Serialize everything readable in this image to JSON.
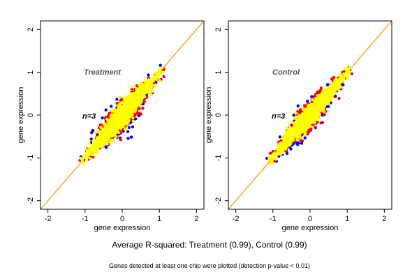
{
  "chart_data": [
    {
      "type": "scatter",
      "title": "Treatment",
      "annotation": "n=3",
      "xlabel": "gene expression",
      "ylabel": "gene expression",
      "xlim": [
        -2.2,
        2.2
      ],
      "ylim": [
        -2.2,
        2.2
      ],
      "xticks": [
        -2,
        -1,
        0,
        1,
        2
      ],
      "yticks": [
        -2,
        -1,
        0,
        1,
        2
      ],
      "grid": false,
      "reference_line": {
        "slope": 1,
        "intercept": 0,
        "color": "#ff8c00"
      },
      "point_cloud": {
        "x_range": [
          -1.2,
          1.2
        ],
        "spread": 0.09,
        "outlier_spread": 0.45
      },
      "series": [
        {
          "color": "#0000ff"
        },
        {
          "color": "#ff0000"
        },
        {
          "color": "#ffff00"
        }
      ]
    },
    {
      "type": "scatter",
      "title": "Control",
      "annotation": "n=3",
      "xlabel": "gene expression",
      "ylabel": "gene expression",
      "xlim": [
        -2.2,
        2.2
      ],
      "ylim": [
        -2.2,
        2.2
      ],
      "xticks": [
        -2,
        -1,
        0,
        1,
        2
      ],
      "yticks": [
        -2,
        -1,
        0,
        1,
        2
      ],
      "grid": false,
      "reference_line": {
        "slope": 1,
        "intercept": 0,
        "color": "#ff8c00"
      },
      "point_cloud": {
        "x_range": [
          -1.2,
          1.2
        ],
        "spread": 0.08,
        "outlier_spread": 0.3
      },
      "series": [
        {
          "color": "#0000ff"
        },
        {
          "color": "#ff0000"
        },
        {
          "color": "#ffff00"
        }
      ]
    }
  ],
  "caption": {
    "main": "Average R-squared: Treatment (0.99), Control (0.99)",
    "note": "Genes detected at least one chip were plotted (detection p-value < 0.01)"
  }
}
